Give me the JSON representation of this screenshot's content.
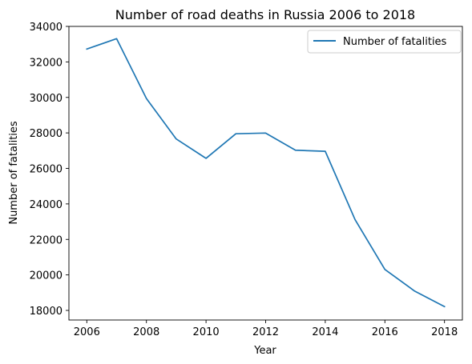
{
  "chart_data": {
    "type": "line",
    "title": "Number of road deaths in Russia 2006 to 2018",
    "xlabel": "Year",
    "ylabel": "Number of fatalities",
    "x": [
      2006,
      2007,
      2008,
      2009,
      2010,
      2011,
      2012,
      2013,
      2014,
      2015,
      2016,
      2017,
      2018
    ],
    "series": [
      {
        "name": "Number of fatalities",
        "color": "#1f77b4",
        "values": [
          32724,
          33308,
          29936,
          27659,
          26567,
          27953,
          27991,
          27025,
          26963,
          23114,
          20308,
          19088,
          18214
        ]
      }
    ],
    "xticks": [
      2006,
      2008,
      2010,
      2012,
      2014,
      2016,
      2018
    ],
    "yticks": [
      18000,
      20000,
      22000,
      24000,
      26000,
      28000,
      30000,
      32000,
      34000
    ],
    "xlim": [
      2005.4,
      2018.6
    ],
    "ylim": [
      17460,
      34000
    ],
    "grid": false,
    "legend_position": "top-right"
  }
}
